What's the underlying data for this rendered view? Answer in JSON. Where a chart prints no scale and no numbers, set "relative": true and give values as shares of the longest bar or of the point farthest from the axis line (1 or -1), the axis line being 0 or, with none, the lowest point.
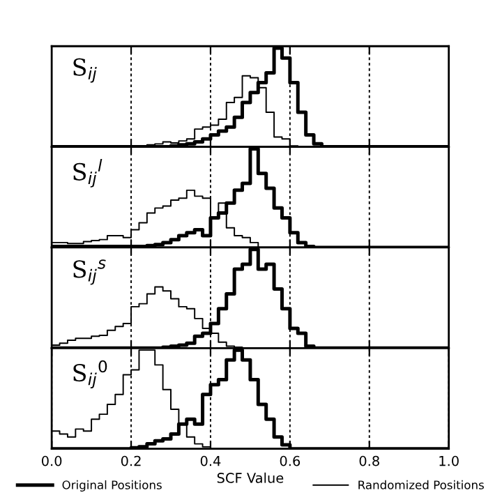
{
  "chart_data": [
    {
      "type": "step",
      "relative": true,
      "xlim": [
        0.0,
        1.0
      ],
      "xticks": [
        0.2,
        0.4,
        0.6,
        0.8
      ],
      "tick_labels": false,
      "grid": "x",
      "line_style": "solid",
      "annotations": [
        "S$_{ij}$"
      ],
      "series": [
        {
          "color": "#000000",
          "x": [
            0.0,
            0.3,
            0.32,
            0.34,
            0.36,
            0.38,
            0.4,
            0.42,
            0.44,
            0.46,
            0.48,
            0.5,
            0.52,
            0.54,
            0.56,
            0.58,
            0.6,
            0.62,
            0.64,
            0.66,
            0.68,
            1.0
          ],
          "values": [
            0,
            0.01,
            0.02,
            0.03,
            0.05,
            0.08,
            0.12,
            0.16,
            0.2,
            0.3,
            0.45,
            0.55,
            0.65,
            0.75,
            1.0,
            0.9,
            0.65,
            0.35,
            0.12,
            0.03,
            0,
            0
          ]
        },
        {
          "color": "#000000",
          "x": [
            0.0,
            0.2,
            0.22,
            0.24,
            0.26,
            0.28,
            0.3,
            0.32,
            0.34,
            0.36,
            0.38,
            0.4,
            0.42,
            0.44,
            0.46,
            0.48,
            0.5,
            0.52,
            0.54,
            0.56,
            0.58,
            0.6,
            0.62,
            1.0
          ],
          "values": [
            0,
            0.01,
            0.01,
            0.02,
            0.03,
            0.05,
            0.04,
            0.06,
            0.08,
            0.18,
            0.2,
            0.22,
            0.28,
            0.45,
            0.5,
            0.72,
            0.7,
            0.6,
            0.35,
            0.1,
            0.08,
            0.01,
            0,
            0
          ]
        }
      ]
    },
    {
      "type": "step",
      "relative": true,
      "xlim": [
        0.0,
        1.0
      ],
      "xticks": [
        0.2,
        0.4,
        0.6,
        0.8
      ],
      "tick_labels": false,
      "grid": "x",
      "line_style": "solid",
      "annotations": [
        "S$_{ij}$$^{l}$"
      ],
      "series": [
        {
          "color": "#000000",
          "x": [
            0.0,
            0.22,
            0.24,
            0.26,
            0.28,
            0.3,
            0.32,
            0.34,
            0.36,
            0.38,
            0.4,
            0.42,
            0.44,
            0.46,
            0.48,
            0.5,
            0.52,
            0.54,
            0.56,
            0.58,
            0.6,
            0.62,
            0.64,
            0.66,
            1.0
          ],
          "values": [
            0.01,
            0.01,
            0.02,
            0.03,
            0.05,
            0.08,
            0.12,
            0.15,
            0.18,
            0.12,
            0.3,
            0.35,
            0.45,
            0.58,
            0.65,
            1.0,
            0.75,
            0.6,
            0.4,
            0.3,
            0.15,
            0.05,
            0.01,
            0,
            0
          ]
        },
        {
          "color": "#000000",
          "x": [
            0.0,
            0.02,
            0.04,
            0.06,
            0.08,
            0.1,
            0.12,
            0.14,
            0.16,
            0.18,
            0.2,
            0.22,
            0.24,
            0.26,
            0.28,
            0.3,
            0.32,
            0.34,
            0.36,
            0.38,
            0.4,
            0.42,
            0.44,
            0.46,
            0.48,
            0.5,
            0.52,
            1.0
          ],
          "values": [
            0.05,
            0.05,
            0.04,
            0.04,
            0.06,
            0.07,
            0.08,
            0.12,
            0.12,
            0.1,
            0.18,
            0.25,
            0.35,
            0.4,
            0.42,
            0.48,
            0.5,
            0.58,
            0.52,
            0.5,
            0.3,
            0.45,
            0.2,
            0.12,
            0.1,
            0.05,
            0,
            0
          ]
        }
      ]
    },
    {
      "type": "step",
      "relative": true,
      "xlim": [
        0.0,
        1.0
      ],
      "xticks": [
        0.2,
        0.4,
        0.6,
        0.8
      ],
      "tick_labels": false,
      "grid": "x",
      "line_style": "solid",
      "annotations": [
        "S$_{ij}$$^{s}$"
      ],
      "series": [
        {
          "color": "#000000",
          "x": [
            0.0,
            0.28,
            0.3,
            0.32,
            0.34,
            0.36,
            0.38,
            0.4,
            0.42,
            0.44,
            0.46,
            0.48,
            0.5,
            0.52,
            0.54,
            0.56,
            0.58,
            0.6,
            0.62,
            0.64,
            0.66,
            1.0
          ],
          "values": [
            0,
            0.01,
            0.02,
            0.03,
            0.05,
            0.12,
            0.15,
            0.25,
            0.4,
            0.55,
            0.8,
            0.85,
            1.0,
            0.8,
            0.85,
            0.6,
            0.4,
            0.2,
            0.15,
            0.02,
            0,
            0
          ]
        },
        {
          "color": "#000000",
          "x": [
            0.0,
            0.02,
            0.04,
            0.06,
            0.08,
            0.1,
            0.12,
            0.14,
            0.16,
            0.18,
            0.2,
            0.22,
            0.24,
            0.26,
            0.28,
            0.3,
            0.32,
            0.34,
            0.36,
            0.38,
            0.4,
            0.42,
            0.44,
            0.46,
            0.48,
            1.0
          ],
          "values": [
            0.03,
            0.05,
            0.08,
            0.1,
            0.1,
            0.12,
            0.13,
            0.18,
            0.22,
            0.25,
            0.42,
            0.45,
            0.55,
            0.62,
            0.58,
            0.5,
            0.42,
            0.4,
            0.3,
            0.2,
            0.15,
            0.06,
            0.02,
            0.01,
            0,
            0
          ]
        }
      ]
    },
    {
      "type": "step",
      "relative": true,
      "xlim": [
        0.0,
        1.0
      ],
      "xticks": [
        {
          "value": 0.0,
          "label": "0.0"
        },
        0.2,
        0.4,
        0.6,
        0.8,
        {
          "value": 1.0,
          "label": "1.0"
        }
      ],
      "tick_labels": "x",
      "grid": "x",
      "line_style": "solid",
      "xlabel": "SCF Value",
      "legend": "bottom",
      "annotations": [
        "S$_{ij}$$^{0}$"
      ],
      "series": [
        {
          "name": "Original Positions",
          "color": "#000000",
          "x": [
            0.0,
            0.2,
            0.22,
            0.24,
            0.26,
            0.28,
            0.3,
            0.32,
            0.34,
            0.36,
            0.38,
            0.4,
            0.42,
            0.44,
            0.46,
            0.48,
            0.5,
            0.52,
            0.54,
            0.56,
            0.58,
            0.6,
            1.0
          ],
          "values": [
            0,
            0.01,
            0.02,
            0.05,
            0.08,
            0.1,
            0.15,
            0.25,
            0.3,
            0.25,
            0.55,
            0.65,
            0.7,
            0.9,
            1.0,
            0.9,
            0.7,
            0.45,
            0.3,
            0.12,
            0.04,
            0,
            0
          ]
        },
        {
          "name": "Randomized Positions",
          "color": "#000000",
          "x": [
            0.0,
            0.02,
            0.04,
            0.06,
            0.08,
            0.1,
            0.12,
            0.14,
            0.16,
            0.18,
            0.2,
            0.22,
            0.24,
            0.26,
            0.28,
            0.3,
            0.32,
            0.34,
            0.36,
            0.38,
            0.4,
            1.0
          ],
          "values": [
            0.18,
            0.15,
            0.12,
            0.2,
            0.18,
            0.3,
            0.35,
            0.45,
            0.55,
            0.75,
            0.8,
            1.0,
            1.0,
            0.85,
            0.6,
            0.4,
            0.25,
            0.12,
            0.05,
            0.02,
            0,
            0
          ]
        }
      ]
    }
  ]
}
